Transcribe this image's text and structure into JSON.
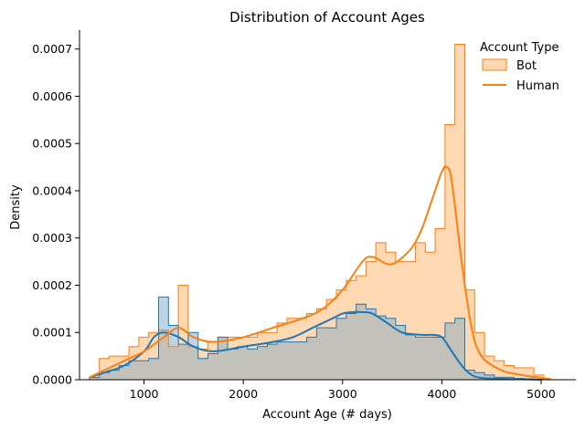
{
  "chart_data": {
    "type": "histogram",
    "title": "Distribution of Account Ages",
    "xlabel": "Account Age (# days)",
    "ylabel": "Density",
    "xlim": [
      350,
      5350
    ],
    "ylim": [
      0,
      0.00074
    ],
    "xticks": [
      1000,
      2000,
      3000,
      4000,
      5000
    ],
    "xtick_labels": [
      "1000",
      "2000",
      "3000",
      "4000",
      "5000"
    ],
    "yticks": [
      0,
      0.0001,
      0.0002,
      0.0003,
      0.0004,
      0.0005,
      0.0006,
      0.0007
    ],
    "ytick_labels": [
      "0.0000",
      "0.0001",
      "0.0002",
      "0.0003",
      "0.0004",
      "0.0005",
      "0.0006",
      "0.0007"
    ],
    "grid": false,
    "legend": {
      "title": "Account Type",
      "placement": "top-right",
      "entries": [
        "Bot",
        "Human"
      ]
    },
    "bin_edges": [
      450,
      549.5,
      649,
      748.5,
      848,
      947.5,
      1047,
      1146.5,
      1246,
      1345.5,
      1445,
      1544.5,
      1644,
      1743.5,
      1843,
      1942.5,
      2042,
      2141.5,
      2241,
      2340.5,
      2440,
      2539.5,
      2639,
      2738.5,
      2838,
      2937.5,
      3037,
      3136.5,
      3236,
      3335.5,
      3435,
      3534.5,
      3634,
      3733.5,
      3833,
      3932.5,
      4032,
      4131.5,
      4231,
      4330.5,
      4430,
      4529.5,
      4629,
      4728.5,
      4828,
      4927.5,
      5027
    ],
    "series": [
      {
        "name": "Bot",
        "color": "#ff7f0e",
        "fill": "#ffd8b4",
        "hist": [
          5e-06,
          4.5e-05,
          5e-05,
          5e-05,
          7e-05,
          9e-05,
          0.0001,
          0.000105,
          7e-05,
          0.0002,
          7e-05,
          6.5e-05,
          8e-05,
          9e-05,
          9e-05,
          9e-05,
          9e-05,
          0.0001,
          0.0001,
          0.00012,
          0.00013,
          0.00013,
          0.00014,
          0.00015,
          0.00017,
          0.00019,
          0.00021,
          0.00022,
          0.00025,
          0.00029,
          0.00027,
          0.00025,
          0.00025,
          0.00029,
          0.00027,
          0.00032,
          0.00054,
          0.00071,
          0.00019,
          0.0001,
          5e-05,
          4e-05,
          3e-05,
          2.5e-05,
          2.5e-05,
          1e-05
        ],
        "kde_x": [
          450,
          600,
          800,
          1000,
          1200,
          1350,
          1500,
          1700,
          2000,
          2300,
          2600,
          2800,
          3000,
          3200,
          3300,
          3450,
          3550,
          3700,
          3800,
          3900,
          4000,
          4050,
          4100,
          4200,
          4300,
          4400,
          4600,
          4800,
          5000,
          5100
        ],
        "kde_y": [
          5e-06,
          2e-05,
          4e-05,
          6e-05,
          9e-05,
          0.00011,
          9e-05,
          8e-05,
          9e-05,
          0.00011,
          0.00013,
          0.00015,
          0.00019,
          0.00025,
          0.00026,
          0.000245,
          0.00025,
          0.00028,
          0.00032,
          0.00038,
          0.00044,
          0.00045,
          0.00042,
          0.00025,
          0.00011,
          5e-05,
          2e-05,
          1e-05,
          4e-06,
          1e-06
        ]
      },
      {
        "name": "Human",
        "color": "#1f77b4",
        "fill": "#bed3e6",
        "hist": [
          5e-06,
          1.5e-05,
          2e-05,
          3e-05,
          4e-05,
          4e-05,
          4.5e-05,
          0.000175,
          0.000115,
          7.5e-05,
          0.0001,
          4.5e-05,
          5.5e-05,
          9e-05,
          6.5e-05,
          7e-05,
          6.5e-05,
          7e-05,
          7.5e-05,
          8e-05,
          8e-05,
          8e-05,
          9e-05,
          0.00011,
          0.00011,
          0.00013,
          0.00014,
          0.00016,
          0.00015,
          0.000135,
          0.00013,
          0.000115,
          9.5e-05,
          9e-05,
          9e-05,
          9e-05,
          0.00012,
          0.00013,
          2e-05,
          1.5e-05,
          1e-05,
          5e-06,
          5e-06,
          3e-06,
          2e-06,
          1e-06
        ],
        "kde_x": [
          450,
          600,
          800,
          1000,
          1100,
          1200,
          1350,
          1500,
          1700,
          2000,
          2300,
          2500,
          2700,
          2900,
          3000,
          3100,
          3200,
          3300,
          3450,
          3600,
          3800,
          3900,
          4000,
          4100,
          4200,
          4300,
          4400,
          4600,
          4800,
          5000
        ],
        "kde_y": [
          5e-06,
          1.5e-05,
          3e-05,
          6e-05,
          9e-05,
          0.0001,
          9e-05,
          7e-05,
          6e-05,
          7e-05,
          8e-05,
          9e-05,
          0.00011,
          0.00013,
          0.00014,
          0.000143,
          0.000143,
          0.00014,
          0.00012,
          0.0001,
          9.5e-05,
          9.5e-05,
          9e-05,
          6e-05,
          3e-05,
          1e-05,
          4e-06,
          2e-06,
          1e-06,
          0.0
        ]
      }
    ],
    "overlap_fill": "#c3c2ba"
  }
}
